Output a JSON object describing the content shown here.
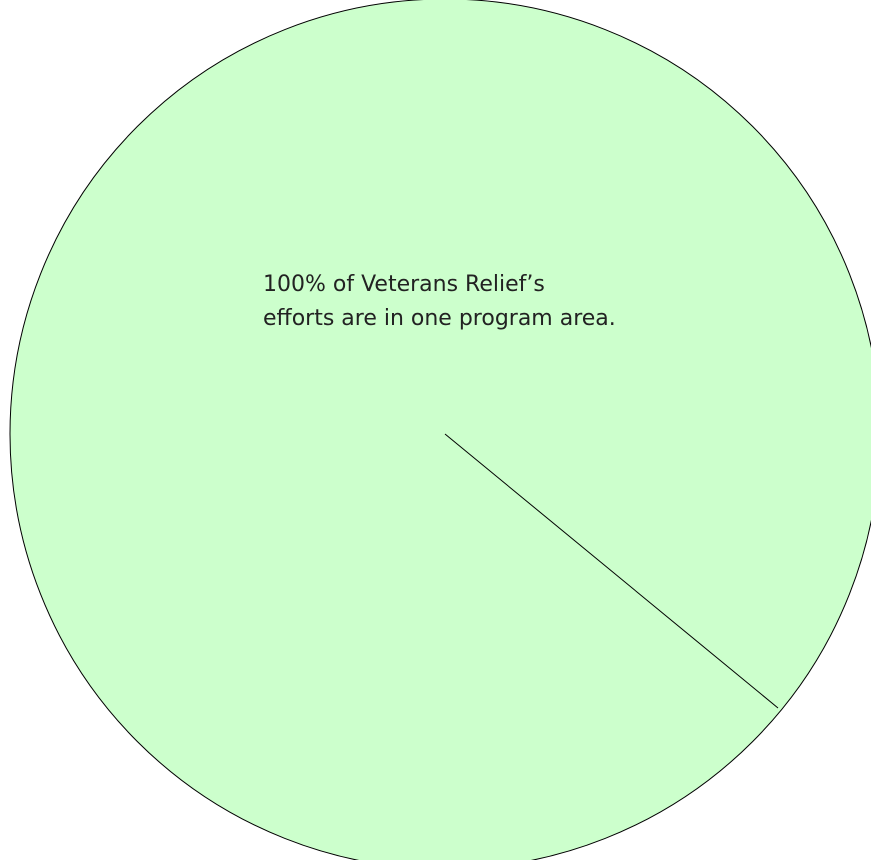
{
  "chart_data": {
    "type": "pie",
    "title": "",
    "slices": [
      {
        "label": "",
        "value": 100,
        "color": "#ccffcc"
      }
    ],
    "annotation": {
      "lines": [
        "100% of Veterans Relief’s",
        "efforts are in one program area."
      ]
    },
    "edge_color": "#000000"
  }
}
